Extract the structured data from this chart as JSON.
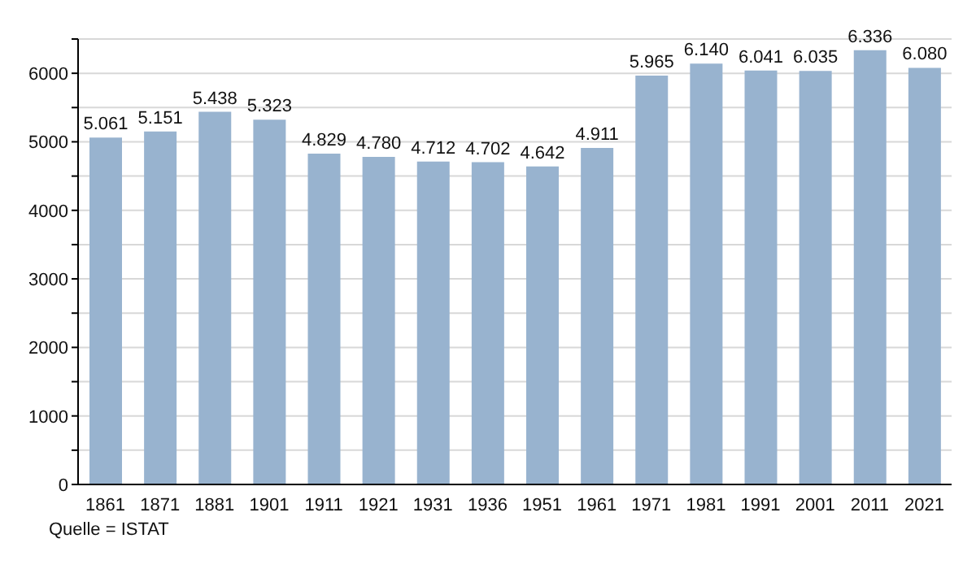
{
  "chart_data": {
    "type": "bar",
    "categories": [
      "1861",
      "1871",
      "1881",
      "1901",
      "1911",
      "1921",
      "1931",
      "1936",
      "1951",
      "1961",
      "1971",
      "1981",
      "1991",
      "2001",
      "2011",
      "2021"
    ],
    "values": [
      5061,
      5151,
      5438,
      5323,
      4829,
      4780,
      4712,
      4702,
      4642,
      4911,
      5965,
      6140,
      6041,
      6035,
      6336,
      6080
    ],
    "value_labels": [
      "5.061",
      "5.151",
      "5.438",
      "5.323",
      "4.829",
      "4.780",
      "4.712",
      "4.702",
      "4.642",
      "4.911",
      "5.965",
      "6.140",
      "6.041",
      "6.035",
      "6.336",
      "6.080"
    ],
    "color": "#98b3cf",
    "ylim": [
      0,
      6500
    ],
    "yticks": [
      0,
      {
        "value": 500,
        "label": null
      },
      1000,
      {
        "value": 1500,
        "label": null
      },
      2000,
      {
        "value": 2500,
        "label": null
      },
      3000,
      {
        "value": 3500,
        "label": null
      },
      4000,
      {
        "value": 4500,
        "label": null
      },
      5000,
      {
        "value": 5500,
        "label": null
      },
      6000,
      {
        "value": 6500,
        "label": null
      }
    ],
    "grid": "y",
    "annotations": [
      "Quelle = ISTAT"
    ]
  }
}
